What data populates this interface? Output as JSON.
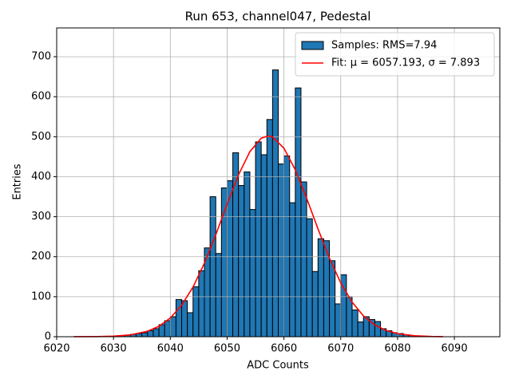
{
  "chart_data": {
    "type": "histogram",
    "title": "Run 653, channel047, Pedestal",
    "xlabel": "ADC Counts",
    "ylabel": "Entries",
    "xlim": [
      6020,
      6098
    ],
    "ylim": [
      0,
      772
    ],
    "xticks": [
      6020,
      6030,
      6040,
      6050,
      6060,
      6070,
      6080,
      6090
    ],
    "yticks": [
      0,
      100,
      200,
      300,
      400,
      500,
      600,
      700
    ],
    "grid": true,
    "legend": "upper right",
    "series": [
      {
        "name": "Samples: RMS=7.94",
        "type": "histogram",
        "color": "#1f77b4",
        "edgecolor": "#000000",
        "bins": [
          6029,
          6030,
          6031,
          6032,
          6033,
          6034,
          6035,
          6036,
          6037,
          6038,
          6039,
          6040,
          6041,
          6042,
          6043,
          6044,
          6045,
          6046,
          6047,
          6048,
          6049,
          6050,
          6051,
          6052,
          6053,
          6054,
          6055,
          6056,
          6057,
          6058,
          6059,
          6060,
          6061,
          6062,
          6063,
          6064,
          6065,
          6066,
          6067,
          6068,
          6069,
          6070,
          6071,
          6072,
          6073,
          6074,
          6075,
          6076,
          6077,
          6078,
          6079,
          6080,
          6081,
          6082,
          6083,
          6084,
          6085,
          6086
        ],
        "values": [
          1,
          2,
          3,
          4,
          6,
          8,
          10,
          15,
          20,
          30,
          40,
          50,
          93,
          90,
          60,
          125,
          165,
          222,
          350,
          208,
          372,
          390,
          460,
          378,
          412,
          318,
          487,
          455,
          543,
          667,
          432,
          452,
          335,
          622,
          387,
          295,
          163,
          245,
          240,
          190,
          82,
          155,
          100,
          67,
          37,
          50,
          43,
          38,
          20,
          15,
          10,
          8,
          5,
          3,
          2,
          1,
          1
        ]
      },
      {
        "name": "Fit: μ = 6057.193, σ = 7.893",
        "type": "line",
        "color": "#ff0000",
        "x": [
          6023,
          6027,
          6030,
          6033,
          6036,
          6038,
          6040,
          6042,
          6044,
          6046,
          6048,
          6050,
          6052,
          6054,
          6056,
          6057.193,
          6058,
          6060,
          6062,
          6064,
          6066,
          6068,
          6070,
          6072,
          6074,
          6076,
          6078,
          6080,
          6083,
          6086,
          6088
        ],
        "values": [
          0.04,
          0.3,
          1.3,
          4.6,
          13.7,
          26.2,
          46.8,
          78.9,
          124.3,
          183.8,
          254.8,
          331.5,
          404.6,
          462.6,
          496.3,
          502,
          499.4,
          471.2,
          417.2,
          346.0,
          269.4,
          196.6,
          134.6,
          86.4,
          52.0,
          29.4,
          15.6,
          7.7,
          2.4,
          0.6,
          0.2
        ]
      }
    ]
  }
}
